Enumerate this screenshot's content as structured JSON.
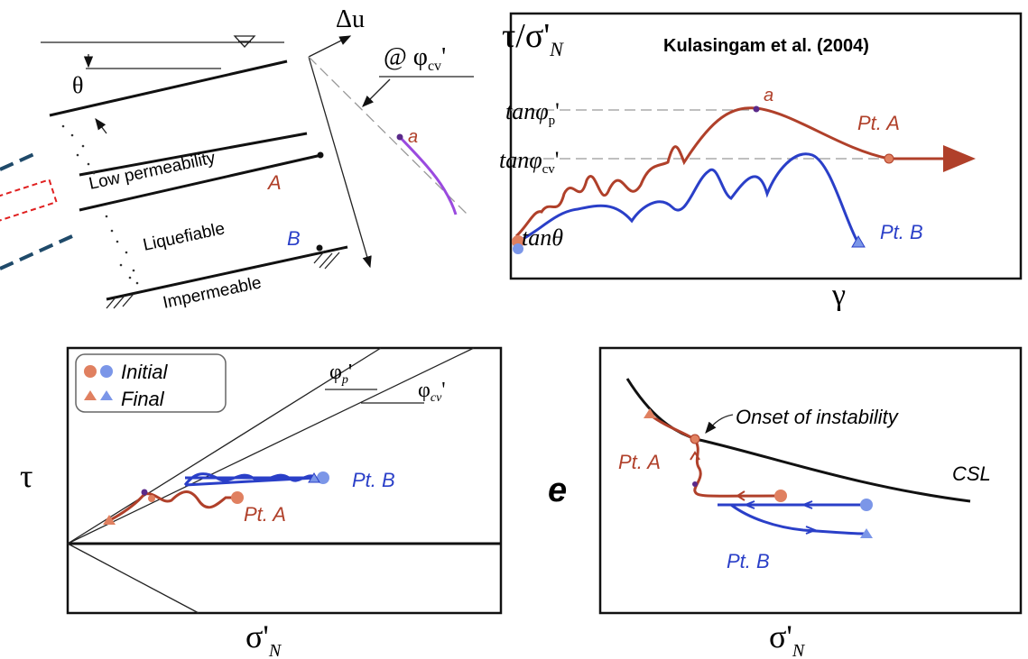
{
  "slope_panel": {
    "theta": "θ",
    "layers": [
      "Low permeability",
      "Liquefiable",
      "Impermeable"
    ],
    "point_a": "A",
    "point_b": "B",
    "delta_u": "Δu",
    "phi_cv": {
      "main": "@ φ",
      "sub": "cv",
      "suffix": "'"
    },
    "point_label": "a"
  },
  "stress_strain_panel": {
    "citation": "Kulasingam et al. (2004)",
    "y_label": {
      "main": "τ/σ'",
      "sub": "N"
    },
    "x_label": "γ",
    "levels": [
      {
        "main": "tanφ",
        "sub": "p",
        "suffix": "'"
      },
      {
        "main": "tanφ",
        "sub": "cv",
        "suffix": "'"
      },
      {
        "main": "tanθ"
      }
    ],
    "point_label": "a",
    "pt_a": "Pt. A",
    "pt_b": "Pt. B"
  },
  "stress_path_panel": {
    "legend": [
      "Initial",
      "Final"
    ],
    "y_label": "τ",
    "x_label": {
      "main": "σ'",
      "sub": "N"
    },
    "lines": [
      {
        "main": "φ",
        "sub": "p",
        "suffix": "'"
      },
      {
        "main": "φ",
        "sub": "cv",
        "suffix": "'"
      }
    ],
    "pt_a": "Pt. A",
    "pt_b": "Pt. B"
  },
  "void_ratio_panel": {
    "annotation": "Onset of instability",
    "y_label": "e",
    "x_label": {
      "main": "σ'",
      "sub": "N"
    },
    "csl": "CSL",
    "pt_a": "Pt. A",
    "pt_b": "Pt. B"
  }
}
